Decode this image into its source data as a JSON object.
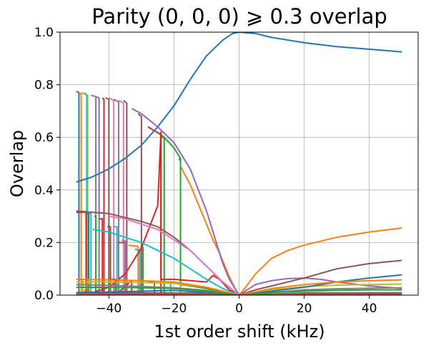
{
  "chart_data": {
    "type": "line",
    "title": "Parity (0, 0, 0) ⩾ 0.3 overlap",
    "xlabel": "1st order shift (kHz)",
    "ylabel": "Overlap",
    "xlim": [
      -55,
      55
    ],
    "ylim": [
      0,
      1.0
    ],
    "xticks": [
      -40,
      -20,
      0,
      20,
      40
    ],
    "xtick_labels": [
      "−40",
      "−20",
      "0",
      "20",
      "40"
    ],
    "yticks": [
      0.0,
      0.2,
      0.4,
      0.6,
      0.8,
      1.0
    ],
    "ytick_labels": [
      "0.0",
      "0.2",
      "0.4",
      "0.6",
      "0.8",
      "1.0"
    ],
    "grid": true,
    "series": [
      {
        "color": "#1f77b4",
        "x": [
          -50,
          -45,
          -40,
          -35,
          -30,
          -25,
          -20,
          -15,
          -10,
          -5,
          -2,
          0,
          5,
          10,
          20,
          30,
          40,
          50
        ],
        "y": [
          0.43,
          0.45,
          0.48,
          0.52,
          0.57,
          0.64,
          0.72,
          0.82,
          0.91,
          0.97,
          0.995,
          1.0,
          0.995,
          0.98,
          0.96,
          0.945,
          0.935,
          0.925
        ]
      },
      {
        "color": "#ff7f0e",
        "x": [
          -18,
          -15,
          -12,
          -10,
          -8,
          -6,
          -4,
          -3,
          -2,
          -1,
          0,
          2,
          5,
          10,
          15,
          20,
          30,
          40,
          50
        ],
        "y": [
          0.49,
          0.42,
          0.33,
          0.27,
          0.21,
          0.16,
          0.1,
          0.07,
          0.045,
          0.02,
          0.0,
          0.03,
          0.08,
          0.14,
          0.17,
          0.19,
          0.22,
          0.24,
          0.255
        ]
      },
      {
        "color": "#2ca02c",
        "x": [
          -24,
          -23,
          -20,
          -18,
          -18,
          -15,
          -10,
          -5,
          0
        ],
        "y": [
          0.6,
          0.6,
          0.56,
          0.52,
          0.04,
          0.035,
          0.025,
          0.012,
          0.0
        ]
      },
      {
        "color": "#d62728",
        "x": [
          -50,
          -45,
          -40,
          -35,
          -30,
          -25,
          -24,
          -24,
          -20,
          -15,
          -10,
          -8,
          -6,
          -3,
          0
        ],
        "y": [
          0.0,
          0.01,
          0.03,
          0.08,
          0.18,
          0.34,
          0.62,
          0.06,
          0.06,
          0.055,
          0.05,
          0.075,
          0.06,
          0.02,
          0.0
        ]
      },
      {
        "color": "#9467bd",
        "x": [
          -33,
          -30,
          -25,
          -20,
          -15,
          -10,
          -8,
          -5,
          -3,
          0,
          5,
          10,
          15,
          20,
          25,
          30,
          40,
          50
        ],
        "y": [
          0.71,
          0.69,
          0.64,
          0.58,
          0.48,
          0.32,
          0.24,
          0.12,
          0.06,
          0.0,
          0.04,
          0.055,
          0.063,
          0.065,
          0.06,
          0.05,
          0.035,
          0.025
        ]
      },
      {
        "color": "#8c564b",
        "x": [
          -50,
          -40,
          -30,
          -25,
          -20,
          -15,
          -10,
          -5,
          0,
          5,
          10,
          20,
          30,
          40,
          50
        ],
        "y": [
          0.32,
          0.31,
          0.28,
          0.26,
          0.22,
          0.17,
          0.11,
          0.05,
          0.0,
          0.02,
          0.035,
          0.065,
          0.1,
          0.12,
          0.132
        ]
      },
      {
        "color": "#e377c2",
        "x": [
          -40,
          -35,
          -30,
          -25,
          -20,
          -15,
          -10,
          -5,
          0
        ],
        "y": [
          0.3,
          0.29,
          0.27,
          0.25,
          0.21,
          0.17,
          0.11,
          0.05,
          0.0
        ]
      },
      {
        "color": "#7f7f7f",
        "x": [
          -50,
          -40,
          -30,
          -20,
          -10,
          -5,
          0,
          10,
          20,
          30,
          40,
          50
        ],
        "y": [
          0.04,
          0.037,
          0.033,
          0.028,
          0.018,
          0.01,
          0.0,
          0.01,
          0.02,
          0.024,
          0.026,
          0.028
        ]
      },
      {
        "color": "#bcbd22",
        "x": [
          -50,
          -40,
          -30,
          -20,
          -10,
          0,
          10,
          20,
          30,
          40,
          50
        ],
        "y": [
          0.05,
          0.05,
          0.048,
          0.045,
          0.03,
          0.0,
          0.02,
          0.032,
          0.038,
          0.04,
          0.042
        ]
      },
      {
        "color": "#17becf",
        "x": [
          -45,
          -40,
          -35,
          -30,
          -25,
          -20,
          -15,
          -10,
          -5,
          0
        ],
        "y": [
          0.25,
          0.24,
          0.22,
          0.2,
          0.17,
          0.14,
          0.1,
          0.06,
          0.025,
          0.0
        ]
      },
      {
        "color": "#1f77b4",
        "x": [
          -50,
          -40,
          -30,
          -20,
          -10,
          0,
          10,
          20,
          30,
          40,
          50
        ],
        "y": [
          0.01,
          0.012,
          0.015,
          0.018,
          0.01,
          0.0,
          0.015,
          0.03,
          0.05,
          0.065,
          0.077
        ]
      },
      {
        "color": "#ff7f0e",
        "x": [
          -50,
          -40,
          -30,
          -20,
          -10,
          0,
          10,
          20,
          30,
          40,
          50
        ],
        "y": [
          0.06,
          0.058,
          0.055,
          0.05,
          0.03,
          0.0,
          0.025,
          0.04,
          0.05,
          0.055,
          0.058
        ]
      },
      {
        "color": "#2ca02c",
        "x": [
          -50,
          -40,
          -30,
          -20,
          -10,
          0,
          10,
          20,
          30,
          40,
          50
        ],
        "y": [
          0.03,
          0.03,
          0.028,
          0.025,
          0.015,
          0.0,
          0.01,
          0.015,
          0.018,
          0.02,
          0.02
        ]
      },
      {
        "color": "#d62728",
        "x": [
          -50,
          -30,
          -10,
          0,
          20,
          50
        ],
        "y": [
          0.002,
          0.003,
          0.004,
          0.0,
          0.003,
          0.004
        ]
      },
      {
        "color": "#9467bd",
        "x": [
          -50,
          -30,
          -10,
          0,
          20,
          50
        ],
        "y": [
          0.005,
          0.006,
          0.005,
          0.0,
          0.006,
          0.007
        ]
      },
      {
        "color": "#8c564b",
        "x": [
          -50,
          -30,
          -10,
          0,
          20,
          50
        ],
        "y": [
          0.008,
          0.009,
          0.007,
          0.0,
          0.008,
          0.009
        ]
      }
    ],
    "drop_traces": [
      {
        "color": "#1f77b4",
        "x": [
          -50,
          -49.2,
          -49.2,
          -46,
          -46
        ],
        "y": [
          0.775,
          0.77,
          0.0,
          0.005,
          0.0
        ]
      },
      {
        "color": "#ff7f0e",
        "x": [
          -49.2,
          -48.5,
          -48.5
        ],
        "y": [
          0.77,
          0.765,
          0.0
        ]
      },
      {
        "color": "#bcbd22",
        "x": [
          -48.5,
          -46.5,
          -46.5
        ],
        "y": [
          0.77,
          0.76,
          0.0
        ]
      },
      {
        "color": "#17becf",
        "x": [
          -47.5,
          -46.8,
          -46.8
        ],
        "y": [
          0.77,
          0.76,
          0.01
        ]
      },
      {
        "color": "#7f7f7f",
        "x": [
          -45.5,
          -44,
          -44
        ],
        "y": [
          0.76,
          0.755,
          0.0
        ]
      },
      {
        "color": "#9467bd",
        "x": [
          -44,
          -43,
          -43
        ],
        "y": [
          0.755,
          0.75,
          0.0
        ]
      },
      {
        "color": "#d62728",
        "x": [
          -42,
          -41.5,
          -41.5
        ],
        "y": [
          0.75,
          0.745,
          0.0
        ]
      },
      {
        "color": "#8c564b",
        "x": [
          -41,
          -40,
          -40
        ],
        "y": [
          0.75,
          0.745,
          0.0
        ]
      },
      {
        "color": "#e377c2",
        "x": [
          -40,
          -38.5,
          -38.5
        ],
        "y": [
          0.75,
          0.74,
          0.0
        ]
      },
      {
        "color": "#7f7f7f",
        "x": [
          -38.5,
          -37,
          -37
        ],
        "y": [
          0.745,
          0.735,
          0.0
        ]
      },
      {
        "color": "#e377c2",
        "x": [
          -37,
          -35.5,
          -35.5
        ],
        "y": [
          0.74,
          0.73,
          0.0
        ]
      },
      {
        "color": "#8c564b",
        "x": [
          -35.5,
          -34.5,
          -34.5
        ],
        "y": [
          0.74,
          0.73,
          0.0
        ]
      },
      {
        "color": "#8c564b",
        "x": [
          -31,
          -30,
          -30
        ],
        "y": [
          0.69,
          0.68,
          0.0
        ]
      },
      {
        "color": "#d62728",
        "x": [
          -28,
          -24,
          -24
        ],
        "y": [
          0.64,
          0.61,
          0.0
        ]
      },
      {
        "color": "#2ca02c",
        "x": [
          -24,
          -23,
          -23
        ],
        "y": [
          0.61,
          0.6,
          0.0
        ]
      },
      {
        "color": "#2ca02c",
        "x": [
          -18.5,
          -18,
          -18
        ],
        "y": [
          0.52,
          0.51,
          0.0
        ]
      },
      {
        "color": "#ff7f0e",
        "x": [
          -18,
          -18
        ],
        "y": [
          0.49,
          0.0
        ]
      },
      {
        "color": "#d62728",
        "x": [
          -50,
          -47,
          -47
        ],
        "y": [
          0.315,
          0.315,
          0.0
        ]
      },
      {
        "color": "#1f77b4",
        "x": [
          -47,
          -46.2,
          -46.2
        ],
        "y": [
          0.31,
          0.31,
          0.0
        ]
      },
      {
        "color": "#17becf",
        "x": [
          -46,
          -45.5,
          -45.5
        ],
        "y": [
          0.31,
          0.31,
          0.01
        ]
      },
      {
        "color": "#2ca02c",
        "x": [
          -44.5,
          -44,
          -44
        ],
        "y": [
          0.3,
          0.3,
          0.0
        ]
      },
      {
        "color": "#d62728",
        "x": [
          -43,
          -42,
          -42
        ],
        "y": [
          0.29,
          0.29,
          0.0
        ]
      },
      {
        "color": "#8c564b",
        "x": [
          -40.5,
          -39.5,
          -39.5
        ],
        "y": [
          0.26,
          0.26,
          0.0
        ]
      },
      {
        "color": "#17becf",
        "x": [
          -38.5,
          -37.5,
          -37.5
        ],
        "y": [
          0.26,
          0.26,
          0.0
        ]
      },
      {
        "color": "#d62728",
        "x": [
          -37,
          -35,
          -35
        ],
        "y": [
          0.2,
          0.2,
          0.0
        ]
      },
      {
        "color": "#9467bd",
        "x": [
          -36,
          -35,
          -35
        ],
        "y": [
          0.21,
          0.205,
          0.0
        ]
      },
      {
        "color": "#ff7f0e",
        "x": [
          -34,
          -31,
          -31
        ],
        "y": [
          0.19,
          0.185,
          0.0
        ]
      },
      {
        "color": "#2ca02c",
        "x": [
          -30,
          -29.5,
          -29.5
        ],
        "y": [
          0.19,
          0.18,
          0.0
        ]
      },
      {
        "color": "#17becf",
        "x": [
          -32,
          -30.5,
          -30.5
        ],
        "y": [
          0.175,
          0.17,
          0.0
        ]
      },
      {
        "color": "#bcbd22",
        "x": [
          -50,
          -48,
          -48,
          -46,
          -46
        ],
        "y": [
          0.06,
          0.06,
          0.0,
          0.06,
          0.0
        ]
      },
      {
        "color": "#d62728",
        "x": [
          -40,
          -38,
          -38,
          -33,
          -33
        ],
        "y": [
          0.06,
          0.06,
          0.0,
          0.055,
          0.0
        ]
      },
      {
        "color": "#8c564b",
        "x": [
          -28,
          -26,
          -26
        ],
        "y": [
          0.05,
          0.05,
          0.0
        ]
      },
      {
        "color": "#17becf",
        "x": [
          -23,
          -21,
          -21
        ],
        "y": [
          0.045,
          0.045,
          0.0
        ]
      }
    ]
  }
}
